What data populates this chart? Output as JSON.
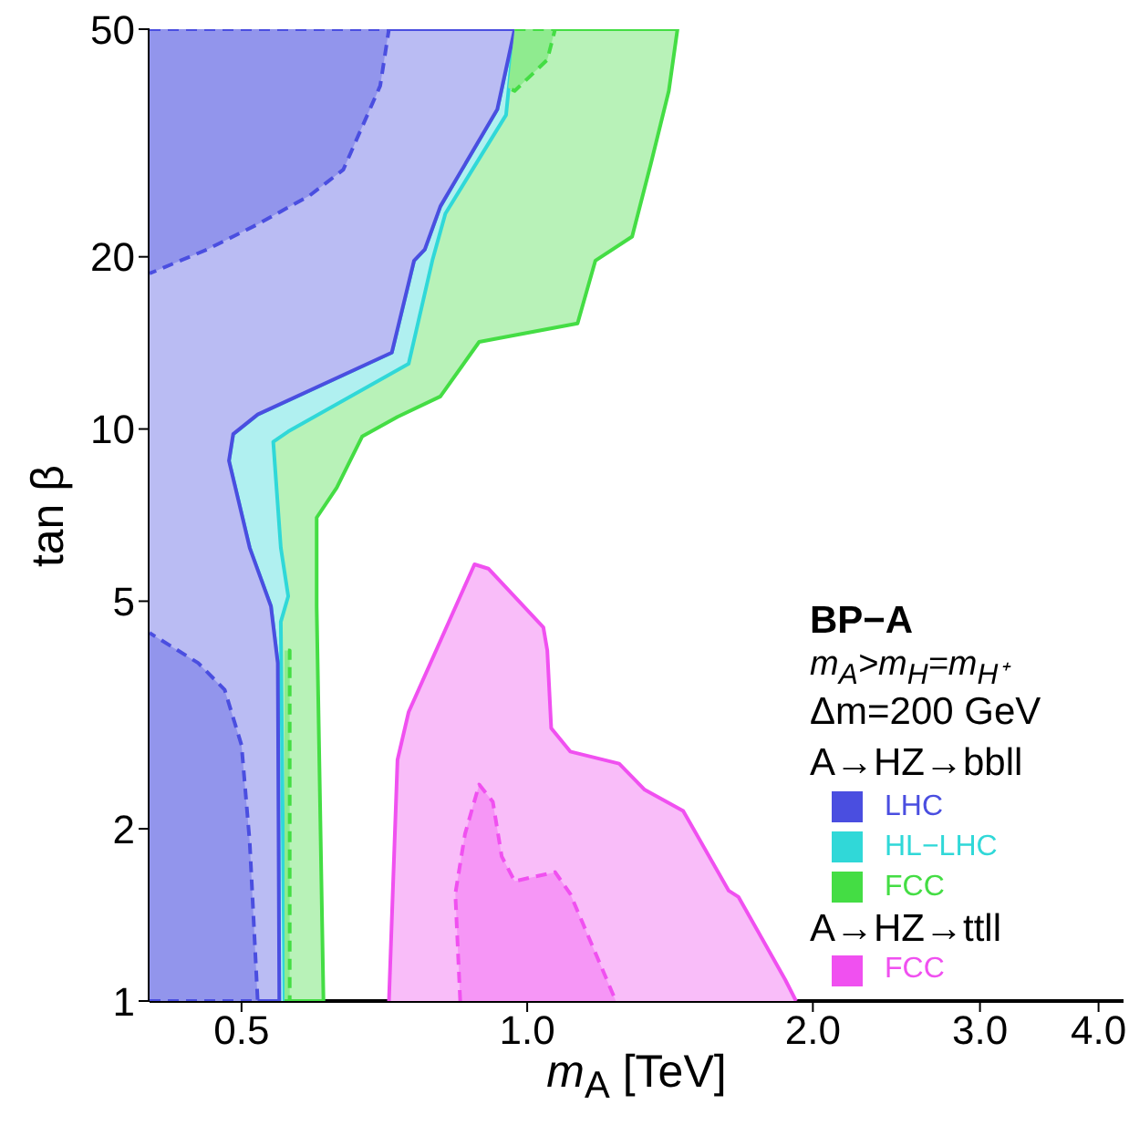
{
  "chart_data": {
    "type": "area",
    "xlabel": "m$_{A}$ [TeV]",
    "ylabel": "tan β",
    "xlim": [
      0.4,
      4.25
    ],
    "ylim": [
      1,
      50
    ],
    "log": "xy",
    "xticks": [
      0.5,
      {
        "value": 1,
        "label": "1.0"
      },
      {
        "value": 2,
        "label": "2.0"
      },
      {
        "value": 3,
        "label": "3.0"
      },
      {
        "value": 4,
        "label": "4.0"
      }
    ],
    "yticks": [
      1,
      2,
      5,
      10,
      20,
      50
    ],
    "grid": false,
    "legend": "bottom right",
    "marker": "none",
    "annotations": [
      "BP−A",
      "m$_{A}$>m$_{H}$=m$_{H⁺}$",
      "Δm=200 GeV",
      "A→HZ→bbll",
      "A→HZ→ttll"
    ],
    "series": [
      {
        "color": "#4a4ee0",
        "line_style": "dashed",
        "x": [
          0.4,
          0.715,
          0.7,
          0.64,
          0.59,
          0.52,
          0.46,
          0.4
        ],
        "values": [
          50,
          50,
          39.8,
          28.4,
          25.6,
          22.8,
          20.6,
          18.7
        ]
      },
      {
        "color": "#4a4ee0",
        "line_style": "dashed",
        "x": [
          0.4,
          0.52,
          0.51,
          0.5,
          0.48,
          0.45,
          0.4
        ],
        "values": [
          1,
          1,
          1.9,
          2.8,
          3.5,
          3.9,
          4.4
        ]
      },
      {
        "color": "#44dd44",
        "line_style": "dashed",
        "x": [
          0.97,
          1.07,
          1.05,
          0.97,
          0.955
        ],
        "values": [
          50,
          50,
          44.2,
          39,
          39.5
        ]
      },
      {
        "color": "#44dd44",
        "line_style": "dashed",
        "x": [
          0.555,
          0.562,
          0.562,
          0.555
        ],
        "values": [
          1,
          1,
          4.1,
          4.1
        ]
      },
      {
        "color": "#f050f0",
        "line_style": "dashed",
        "x": [
          0.85,
          0.84,
          0.86,
          0.89,
          0.92,
          0.94,
          0.97,
          1.07,
          1.11,
          1.24
        ],
        "values": [
          1,
          1.54,
          1.96,
          2.39,
          2.23,
          1.79,
          1.62,
          1.68,
          1.54,
          1
        ]
      },
      {
        "name": "LHC",
        "color": "#4a4ee0",
        "line_style": "solid",
        "x": [
          0.4,
          0.548,
          0.546,
          0.537,
          0.51,
          0.485,
          0.49,
          0.52,
          0.72,
          0.76,
          0.78,
          0.81,
          0.93,
          0.97,
          0.4
        ],
        "values": [
          1,
          1,
          3.9,
          4.9,
          6.2,
          8.8,
          9.8,
          10.6,
          13.6,
          19.7,
          20.6,
          24.5,
          36.2,
          50,
          50
        ]
      },
      {
        "name": "HL−LHC",
        "color": "#30d8d8",
        "line_style": "solid",
        "x": [
          0.555,
          0.55,
          0.56,
          0.55,
          0.54,
          0.56,
          0.75,
          0.795,
          0.82,
          0.95,
          0.97,
          0.93,
          0.81,
          0.78,
          0.76,
          0.72,
          0.52,
          0.49,
          0.485,
          0.51,
          0.537,
          0.546,
          0.548
        ],
        "values": [
          1,
          4.6,
          5.1,
          6.2,
          9.5,
          9.9,
          13.0,
          19.8,
          23.8,
          35.4,
          50,
          36.2,
          24.5,
          20.6,
          19.7,
          13.6,
          10.6,
          9.8,
          8.8,
          6.2,
          4.9,
          3.9,
          1
        ]
      },
      {
        "name": "FCC",
        "color": "#44dd44",
        "line_style": "solid",
        "x": [
          0.4,
          0.61,
          0.6,
          0.6,
          0.63,
          0.67,
          0.73,
          0.81,
          0.89,
          1.13,
          1.18,
          1.29,
          1.35,
          1.41,
          1.44,
          0.4
        ],
        "values": [
          1,
          1,
          4.9,
          7.0,
          7.9,
          9.7,
          10.5,
          11.4,
          14.2,
          15.3,
          19.7,
          21.7,
          29.1,
          39,
          50,
          50
        ]
      },
      {
        "name": "FCC",
        "color": "#f050f0",
        "line_style": "solid",
        "x": [
          0.715,
          0.73,
          0.75,
          0.88,
          0.91,
          1.04,
          1.05,
          1.06,
          1.11,
          1.25,
          1.33,
          1.46,
          1.63,
          1.67,
          1.87,
          1.92
        ],
        "values": [
          1,
          2.64,
          3.2,
          5.8,
          5.7,
          4.5,
          4.1,
          3.0,
          2.73,
          2.6,
          2.34,
          2.15,
          1.56,
          1.52,
          1.09,
          1
        ]
      }
    ]
  }
}
